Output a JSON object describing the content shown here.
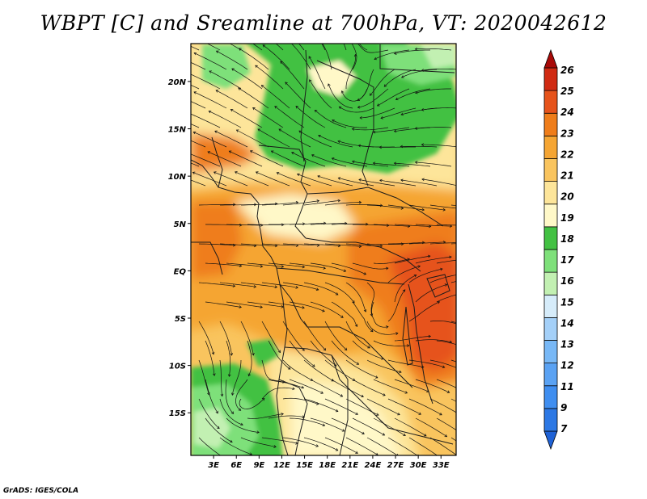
{
  "title": "WBPT [C] and Sreamline at 700hPa, VT: 2020042612",
  "credit": "GrADS: IGES/COLA",
  "map": {
    "lon_labels": [
      "3E",
      "6E",
      "9E",
      "12E",
      "15E",
      "18E",
      "21E",
      "24E",
      "27E",
      "30E",
      "33E"
    ],
    "lat_labels": [
      "20N",
      "15N",
      "10N",
      "5N",
      "EQ",
      "5S",
      "10S",
      "15S"
    ],
    "lon_range": [
      0,
      35
    ],
    "lat_range": [
      -19.5,
      24
    ]
  },
  "colorbar": {
    "labels": [
      "7",
      "9",
      "11",
      "12",
      "13",
      "14",
      "15",
      "16",
      "17",
      "18",
      "19",
      "20",
      "21",
      "22",
      "23",
      "24",
      "25",
      "26"
    ],
    "colors": [
      "#1f62d6",
      "#2d78e4",
      "#3f8ef0",
      "#5aa2f3",
      "#78b8f6",
      "#a4d0f8",
      "#d6ecfa",
      "#c2f0b2",
      "#7ee07a",
      "#43c143",
      "#fff8c8",
      "#fde59a",
      "#f9c45e",
      "#f5a533",
      "#ef7d1a",
      "#e6531b",
      "#d02a12",
      "#a80a08"
    ]
  },
  "fields": {
    "colors": {
      "c16": "#c2f0b2",
      "c17": "#7ee07a",
      "c18": "#43c143",
      "c19": "#fff8c8",
      "c20": "#fde59a",
      "c21": "#f9c45e",
      "c22": "#f5a533",
      "c23": "#ef7d1a",
      "c24": "#e6531b"
    }
  }
}
